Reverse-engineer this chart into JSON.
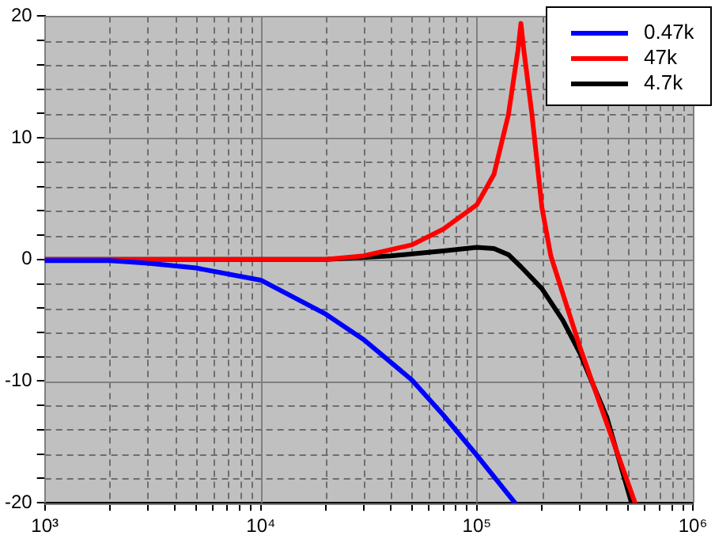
{
  "chart_data": {
    "type": "line",
    "log": "x",
    "grid": true,
    "legend": "top right",
    "marker": "none",
    "line_style": "solid",
    "xlim": [
      1000,
      1000000
    ],
    "xticks": [
      {
        "value": 1000,
        "label": "10³"
      },
      {
        "value": 2000,
        "label": null
      },
      {
        "value": 3000,
        "label": null
      },
      {
        "value": 4000,
        "label": null
      },
      {
        "value": 5000,
        "label": null
      },
      {
        "value": 6000,
        "label": null
      },
      {
        "value": 7000,
        "label": null
      },
      {
        "value": 8000,
        "label": null
      },
      {
        "value": 9000,
        "label": null
      },
      {
        "value": 10000,
        "label": "10⁴"
      },
      {
        "value": 20000,
        "label": null
      },
      {
        "value": 30000,
        "label": null
      },
      {
        "value": 40000,
        "label": null
      },
      {
        "value": 50000,
        "label": null
      },
      {
        "value": 60000,
        "label": null
      },
      {
        "value": 70000,
        "label": null
      },
      {
        "value": 80000,
        "label": null
      },
      {
        "value": 90000,
        "label": null
      },
      {
        "value": 100000,
        "label": "10⁵"
      },
      {
        "value": 200000,
        "label": null
      },
      {
        "value": 300000,
        "label": null
      },
      {
        "value": 400000,
        "label": null
      },
      {
        "value": 500000,
        "label": null
      },
      {
        "value": 600000,
        "label": null
      },
      {
        "value": 700000,
        "label": null
      },
      {
        "value": 800000,
        "label": null
      },
      {
        "value": 900000,
        "label": null
      },
      {
        "value": 1000000,
        "label": "10⁶"
      }
    ],
    "ylim": [
      -20,
      20
    ],
    "yticks": [
      -20,
      {
        "value": -18,
        "label": null
      },
      {
        "value": -16,
        "label": null
      },
      {
        "value": -14,
        "label": null
      },
      {
        "value": -12,
        "label": null
      },
      -10,
      {
        "value": -8,
        "label": null
      },
      {
        "value": -6,
        "label": null
      },
      {
        "value": -4,
        "label": null
      },
      {
        "value": -2,
        "label": null
      },
      0,
      {
        "value": 2,
        "label": null
      },
      {
        "value": 4,
        "label": null
      },
      {
        "value": 6,
        "label": null
      },
      {
        "value": 8,
        "label": null
      },
      10,
      {
        "value": 12,
        "label": null
      },
      {
        "value": 14,
        "label": null
      },
      {
        "value": 16,
        "label": null
      },
      {
        "value": 18,
        "label": null
      },
      20
    ],
    "series": [
      {
        "name": "0.47k",
        "color": "#0000ff",
        "x": [
          1000,
          2000,
          3000,
          5000,
          10000,
          20000,
          30000,
          50000,
          70000,
          100000,
          150000
        ],
        "values": [
          -0.1,
          -0.1,
          -0.3,
          -0.7,
          -1.7,
          -4.5,
          -6.6,
          -9.9,
          -12.8,
          -16.1,
          -20
        ]
      },
      {
        "name": "47k",
        "color": "#ff0000",
        "x": [
          1000,
          10000,
          20000,
          30000,
          50000,
          70000,
          100000,
          120000,
          140000,
          155000,
          160000,
          165000,
          180000,
          200000,
          220000,
          250000,
          300000,
          400000,
          540000
        ],
        "values": [
          0,
          0,
          0,
          0.3,
          1.2,
          2.5,
          4.5,
          7,
          11.9,
          17.2,
          19.4,
          17.2,
          11.9,
          4.3,
          0.3,
          -2.8,
          -7.2,
          -13.5,
          -20
        ]
      },
      {
        "name": "4.7k",
        "color": "#000000",
        "x": [
          1000,
          10000,
          20000,
          40000,
          70000,
          100000,
          120000,
          140000,
          160000,
          200000,
          250000,
          300000,
          400000,
          520000
        ],
        "values": [
          0,
          0,
          0,
          0.3,
          0.7,
          1.0,
          0.9,
          0.4,
          -0.6,
          -2.4,
          -5.0,
          -7.7,
          -13.0,
          -20
        ]
      }
    ]
  }
}
